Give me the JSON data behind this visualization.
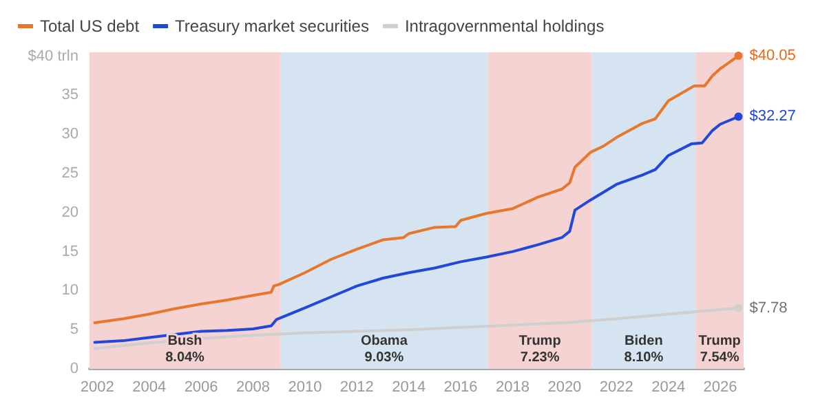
{
  "chart_data": {
    "type": "line",
    "legend": "top left",
    "grid": "y",
    "marker": "none",
    "line_style": "solid",
    "xlim": [
      2001.7,
      2026.9
    ],
    "xticks": [
      2002,
      2004,
      2006,
      2008,
      2010,
      2012,
      2014,
      2016,
      2018,
      2020,
      2022,
      2024,
      2026
    ],
    "ylim": [
      0,
      40.5
    ],
    "yticks": [
      0,
      5,
      10,
      15,
      20,
      25,
      30,
      35,
      {
        "value": 40,
        "label": "$40 trln"
      }
    ],
    "series": [
      {
        "name": "Total US debt",
        "color": "#e8772e",
        "x": [
          2001.9,
          2003,
          2004,
          2005,
          2006,
          2007,
          2008,
          2008.7,
          2008.8,
          2009,
          2010,
          2011,
          2012,
          2013,
          2013.8,
          2014,
          2015,
          2015.8,
          2016,
          2017,
          2018,
          2019,
          2019.9,
          2020.2,
          2020.4,
          2021,
          2021.5,
          2022,
          2023,
          2023.5,
          2024,
          2025,
          2025.4,
          2025.7,
          2026,
          2026.7
        ],
        "values": [
          5.9,
          6.4,
          7.0,
          7.7,
          8.3,
          8.8,
          9.4,
          9.8,
          10.6,
          10.8,
          12.3,
          14.0,
          15.3,
          16.5,
          16.8,
          17.3,
          18.1,
          18.2,
          19.0,
          19.9,
          20.5,
          22.0,
          23.0,
          23.8,
          25.8,
          27.7,
          28.5,
          29.6,
          31.4,
          32.0,
          34.3,
          36.2,
          36.2,
          37.5,
          38.4,
          40.05
        ],
        "value_labels": [
          null,
          null,
          null,
          null,
          null,
          null,
          null,
          null,
          null,
          null,
          null,
          null,
          null,
          null,
          null,
          null,
          null,
          null,
          null,
          null,
          null,
          null,
          null,
          null,
          null,
          null,
          null,
          null,
          null,
          null,
          null,
          null,
          null,
          null,
          null,
          "$40.05"
        ]
      },
      {
        "name": "Treasury market securities",
        "color": "#2148d8",
        "x": [
          2001.9,
          2003,
          2004,
          2005,
          2006,
          2007,
          2008,
          2008.7,
          2008.9,
          2010,
          2011,
          2012,
          2013,
          2014,
          2015,
          2016,
          2017,
          2018,
          2019,
          2019.9,
          2020.2,
          2020.4,
          2021,
          2022,
          2023,
          2023.5,
          2024,
          2024.9,
          2025.3,
          2025.7,
          2026,
          2026.7
        ],
        "values": [
          3.4,
          3.6,
          4.0,
          4.4,
          4.8,
          4.9,
          5.1,
          5.5,
          6.3,
          7.8,
          9.2,
          10.6,
          11.6,
          12.3,
          12.9,
          13.7,
          14.3,
          15.0,
          15.9,
          16.8,
          17.6,
          20.3,
          21.6,
          23.6,
          24.8,
          25.5,
          27.3,
          28.8,
          28.9,
          30.5,
          31.3,
          32.27
        ],
        "value_labels": [
          null,
          null,
          null,
          null,
          null,
          null,
          null,
          null,
          null,
          null,
          null,
          null,
          null,
          null,
          null,
          null,
          null,
          null,
          null,
          null,
          null,
          null,
          null,
          null,
          null,
          null,
          null,
          null,
          null,
          null,
          null,
          "$32.27"
        ]
      },
      {
        "name": "Intragovernmental holdings",
        "color": "#cfcfcf",
        "x": [
          2001.9,
          2004,
          2006,
          2008,
          2010,
          2012,
          2014,
          2016,
          2018,
          2020,
          2022,
          2024,
          2026.7
        ],
        "values": [
          2.6,
          3.3,
          3.9,
          4.3,
          4.6,
          4.8,
          5.0,
          5.3,
          5.6,
          5.9,
          6.4,
          7.0,
          7.78
        ],
        "value_labels": [
          null,
          null,
          null,
          null,
          null,
          null,
          null,
          null,
          null,
          null,
          null,
          null,
          "$7.78"
        ]
      }
    ],
    "bands": [
      {
        "axis": "x",
        "from": 2001.7,
        "to": 2009.05,
        "label": "Bush\n8.04%",
        "color": "#f6d3d3"
      },
      {
        "axis": "x",
        "from": 2009.05,
        "to": 2017.05,
        "label": "Obama\n9.03%",
        "color": "#d5e4f0"
      },
      {
        "axis": "x",
        "from": 2017.05,
        "to": 2021.05,
        "label": "Trump\n7.23%",
        "color": "#f6d3d3"
      },
      {
        "axis": "x",
        "from": 2021.05,
        "to": 2025.05,
        "label": "Biden\n8.10%",
        "color": "#d5e4f0"
      },
      {
        "axis": "x",
        "from": 2025.05,
        "to": 2026.9,
        "label": "Trump\n7.54%",
        "color": "#f6d3d3"
      }
    ]
  }
}
